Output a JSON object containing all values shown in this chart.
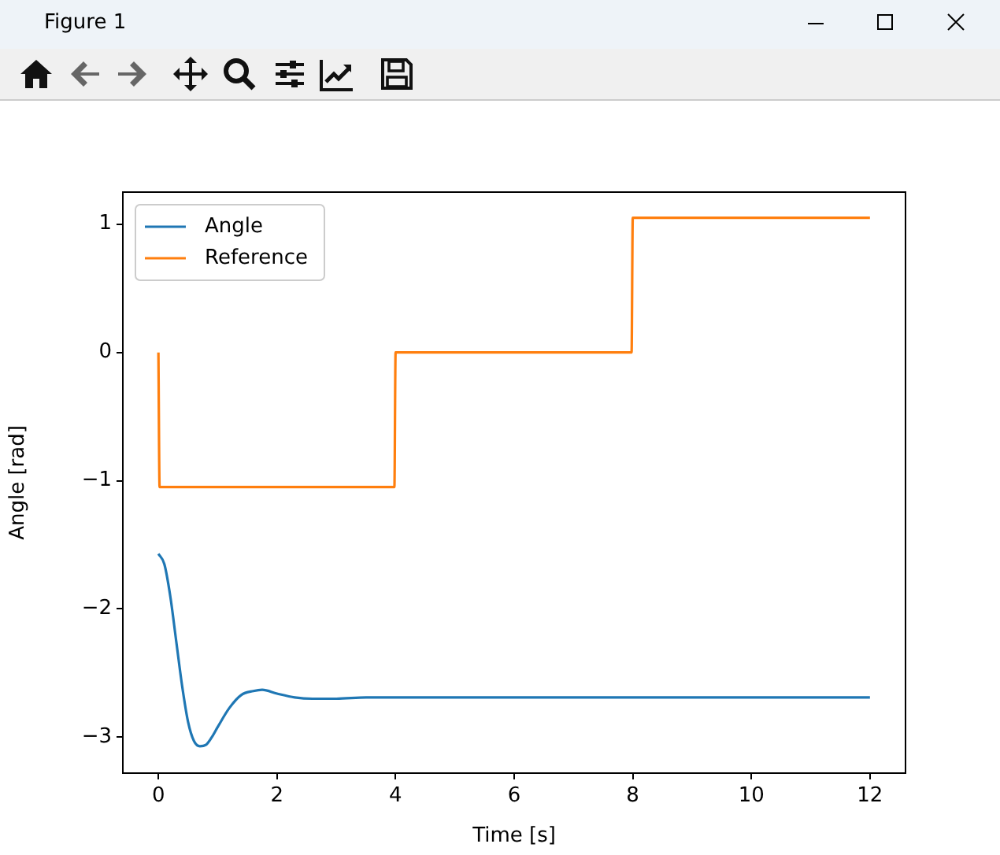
{
  "chart_data": {
    "type": "line",
    "xlabel": "Time [s]",
    "ylabel": "Angle [rad]",
    "annotations": [
      "Figure 1"
    ],
    "xlim": [
      -0.6,
      12.6
    ],
    "ylim": [
      -3.28,
      1.25
    ],
    "xticks": [
      0,
      2,
      4,
      6,
      8,
      10,
      12
    ],
    "yticks": [
      {
        "value": -3,
        "label": "−3"
      },
      {
        "value": -2,
        "label": "−2"
      },
      {
        "value": -1,
        "label": "−1"
      },
      0,
      1
    ],
    "grid": false,
    "legend": "top left",
    "marker": "none",
    "line_style": "solid",
    "series": [
      {
        "name": "Angle",
        "color": "#1f77b4",
        "x": [
          0,
          0.1,
          0.2,
          0.3,
          0.4,
          0.5,
          0.6,
          0.7,
          0.8,
          0.9,
          1.0,
          1.2,
          1.4,
          1.6,
          1.75,
          2.0,
          2.3,
          2.6,
          3.0,
          3.5,
          4,
          12
        ],
        "values": [
          -1.57,
          -1.65,
          -1.9,
          -2.25,
          -2.6,
          -2.88,
          -3.03,
          -3.07,
          -3.06,
          -3.0,
          -2.92,
          -2.77,
          -2.67,
          -2.64,
          -2.63,
          -2.66,
          -2.69,
          -2.7,
          -2.7,
          -2.69,
          -2.69,
          -2.69
        ]
      },
      {
        "name": "Reference",
        "color": "#ff7f0e",
        "x": [
          0,
          0.02,
          3.98,
          4,
          7.98,
          8,
          12
        ],
        "values": [
          0,
          -1.05,
          -1.05,
          0,
          0,
          1.05,
          1.05
        ]
      }
    ]
  }
}
